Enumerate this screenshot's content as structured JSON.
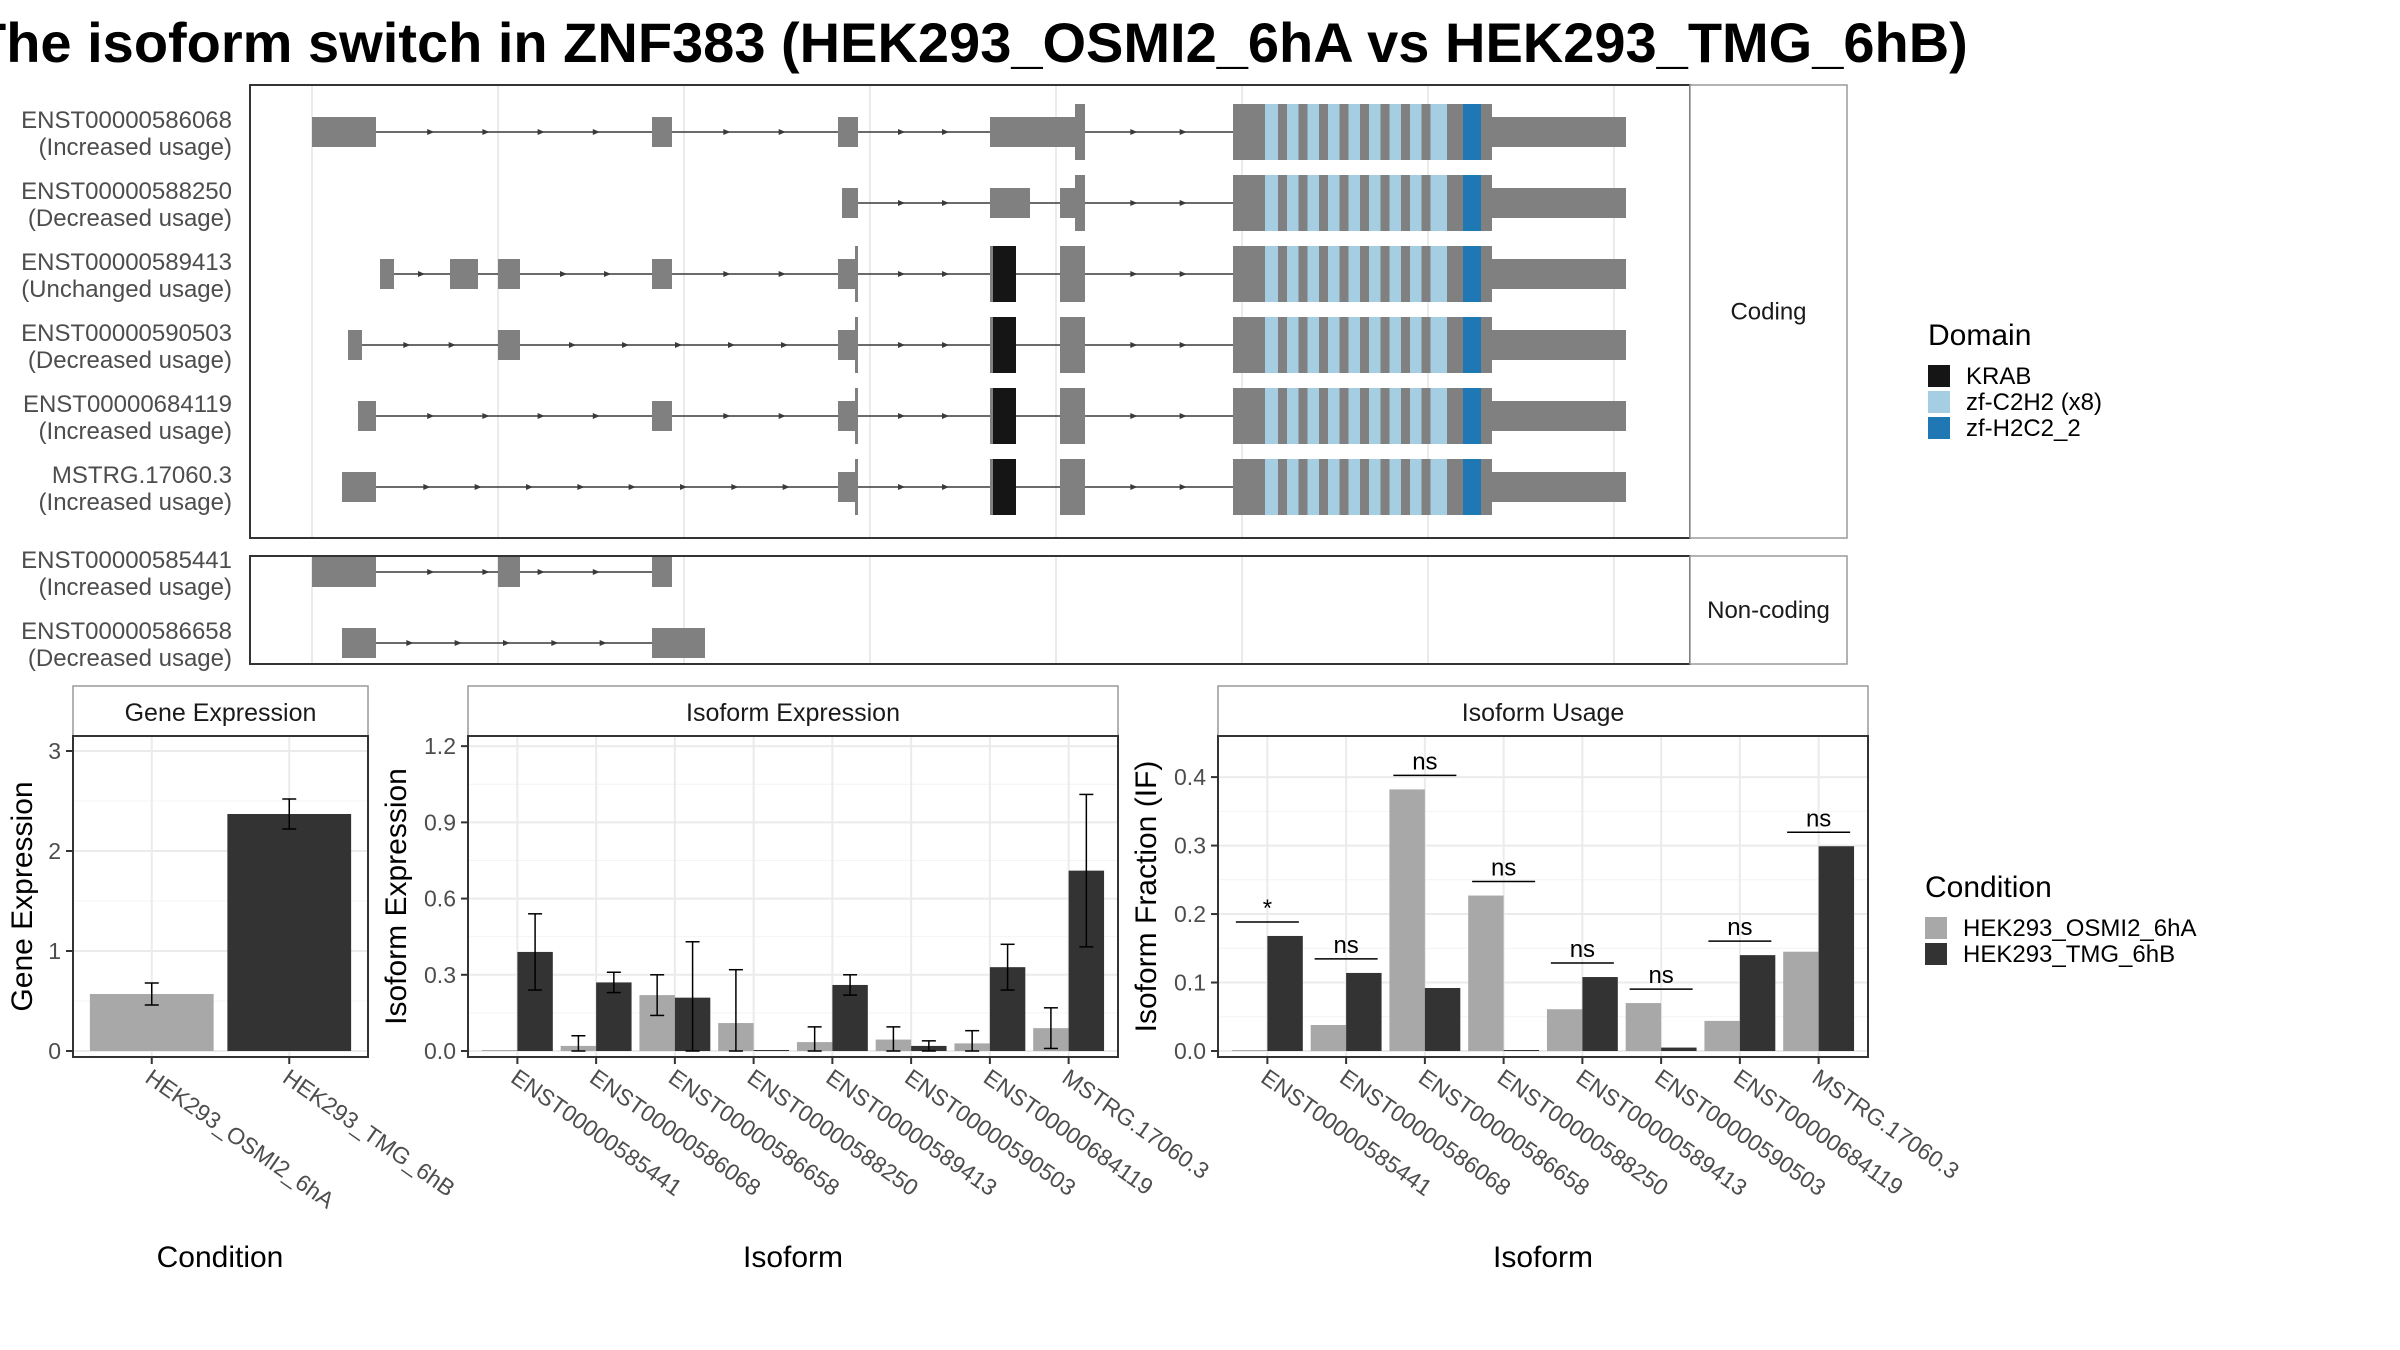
{
  "title": "The isoform switch in ZNF383 (HEK293_OSMI2_6hA vs HEK293_TMG_6hB)",
  "colors": {
    "exon": "#808080",
    "intron": "#3a3a3a",
    "KRAB": "#151515",
    "zf-C2H2 (x8)": "#a6cee3",
    "zf-H2C2_2": "#1f78b4",
    "condition_a": "#a8a8a8",
    "condition_b": "#333333",
    "panel_border": "#333333",
    "strip_border": "#9a9a9a",
    "grid": "#ebebeb"
  },
  "structure": {
    "coding_strip": "Coding",
    "noncoding_strip": "Non-coding",
    "coding_isoforms": [
      {
        "id": "ENST00000586068",
        "usage": "(Increased usage)"
      },
      {
        "id": "ENST00000588250",
        "usage": "(Decreased usage)"
      },
      {
        "id": "ENST00000589413",
        "usage": "(Unchanged usage)"
      },
      {
        "id": "ENST00000590503",
        "usage": "(Decreased usage)"
      },
      {
        "id": "ENST00000684119",
        "usage": "(Increased usage)"
      },
      {
        "id": "MSTRG.17060.3",
        "usage": "(Increased usage)"
      }
    ],
    "noncoding_isoforms": [
      {
        "id": "ENST00000585441",
        "usage": "(Increased usage)"
      },
      {
        "id": "ENST00000586658",
        "usage": "(Decreased usage)"
      }
    ]
  },
  "legend_domain": {
    "title": "Domain",
    "items": [
      {
        "label": "KRAB",
        "color": "#151515"
      },
      {
        "label": "zf-C2H2 (x8)",
        "color": "#a6cee3"
      },
      {
        "label": "zf-H2C2_2",
        "color": "#1f78b4"
      }
    ]
  },
  "legend_condition": {
    "title": "Condition",
    "items": [
      {
        "label": "HEK293_OSMI2_6hA",
        "color": "#a8a8a8"
      },
      {
        "label": "HEK293_TMG_6hB",
        "color": "#333333"
      }
    ]
  },
  "chart_data": [
    {
      "type": "bar",
      "title": "Gene Expression",
      "xlabel": "Condition",
      "ylabel": "Gene Expression",
      "ylim": [
        0,
        3.15
      ],
      "yticks": [
        0,
        1,
        2,
        3
      ],
      "yticklabels": [
        "0",
        "1",
        "2",
        "3"
      ],
      "categories": [
        "HEK293_OSMI2_6hA",
        "HEK293_TMG_6hB"
      ],
      "values": [
        0.57,
        2.37
      ],
      "errors": [
        0.11,
        0.15
      ]
    },
    {
      "type": "bar",
      "title": "Isoform Expression",
      "xlabel": "Isoform",
      "ylabel": "Isoform Expression",
      "ylim": [
        0,
        1.24
      ],
      "yticks": [
        0,
        0.3,
        0.6,
        0.9,
        1.2
      ],
      "yticklabels": [
        "0.0",
        "0.3",
        "0.6",
        "0.9",
        "1.2"
      ],
      "categories": [
        "ENST00000585441",
        "ENST00000586068",
        "ENST00000586658",
        "ENST00000588250",
        "ENST00000589413",
        "ENST00000590503",
        "ENST00000684119",
        "MSTRG.17060.3"
      ],
      "series": [
        {
          "name": "HEK293_OSMI2_6hA",
          "values": [
            0.0,
            0.02,
            0.22,
            0.11,
            0.035,
            0.045,
            0.03,
            0.09
          ],
          "errors": [
            0.0,
            0.04,
            0.08,
            0.21,
            0.06,
            0.05,
            0.05,
            0.08
          ]
        },
        {
          "name": "HEK293_TMG_6hB",
          "values": [
            0.39,
            0.27,
            0.21,
            0.0,
            0.26,
            0.02,
            0.33,
            0.71
          ],
          "errors": [
            0.15,
            0.04,
            0.22,
            0.0,
            0.04,
            0.02,
            0.09,
            0.3
          ]
        }
      ]
    },
    {
      "type": "bar",
      "title": "Isoform Usage",
      "xlabel": "Isoform",
      "ylabel": "Isoform Fraction (IF)",
      "ylim": [
        0,
        0.46
      ],
      "yticks": [
        0,
        0.1,
        0.2,
        0.3,
        0.4
      ],
      "yticklabels": [
        "0.0",
        "0.1",
        "0.2",
        "0.3",
        "0.4"
      ],
      "categories": [
        "ENST00000585441",
        "ENST00000586068",
        "ENST00000586658",
        "ENST00000588250",
        "ENST00000589413",
        "ENST00000590503",
        "ENST00000684119",
        "MSTRG.17060.3"
      ],
      "series": [
        {
          "name": "HEK293_OSMI2_6hA",
          "values": [
            0.0,
            0.038,
            0.382,
            0.227,
            0.061,
            0.07,
            0.044,
            0.145
          ]
        },
        {
          "name": "HEK293_TMG_6hB",
          "values": [
            0.168,
            0.114,
            0.092,
            0.0,
            0.108,
            0.005,
            0.14,
            0.299
          ]
        }
      ],
      "significance": [
        "*",
        "ns",
        "ns",
        "ns",
        "ns",
        "ns",
        "ns",
        "ns"
      ]
    }
  ]
}
